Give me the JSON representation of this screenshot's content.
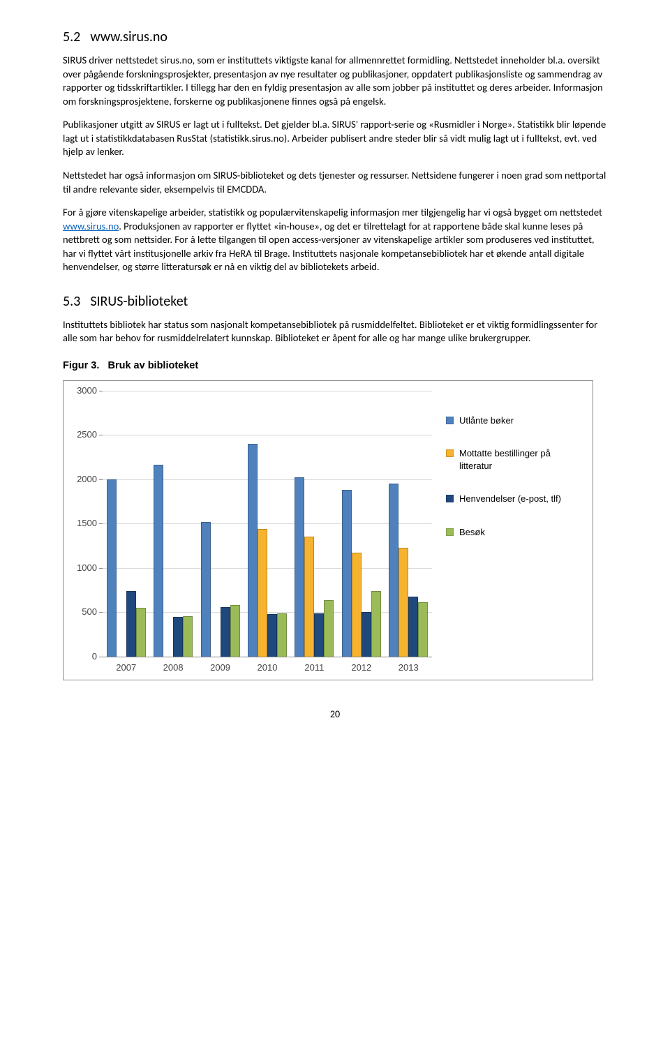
{
  "section_5_2": {
    "number": "5.2",
    "title": "www.sirus.no",
    "p1": "SIRUS driver nettstedet sirus.no, som er instituttets viktigste kanal for allmennrettet formidling. Nettstedet inneholder bl.a. oversikt over pågående forskningsprosjekter, presentasjon av nye resultater og publikasjoner, oppdatert publikasjonsliste og sammendrag av rapporter og tidsskriftartikler. I tillegg har den en fyldig presentasjon av alle som jobber på instituttet og deres arbeider. Informasjon om forskningsprosjektene, forskerne og publikasjonene finnes også på engelsk.",
    "p2": "Publikasjoner utgitt av SIRUS er lagt ut i fulltekst. Det gjelder bl.a. SIRUS' rapport-serie og «Rusmidler i Norge». Statistikk blir løpende lagt ut i statistikkdatabasen RusStat (statistikk.sirus.no). Arbeider publisert andre steder blir så vidt mulig lagt ut i fulltekst, evt. ved hjelp av lenker.",
    "p3": "Nettstedet har også informasjon om SIRUS-biblioteket og dets tjenester og ressurser. Nettsidene fungerer i noen grad som nettportal til andre relevante sider, eksempelvis til EMCDDA.",
    "p4_pre": "For å gjøre vitenskapelige arbeider, statistikk og populærvitenskapelig informasjon mer tilgjengelig har vi også bygget om nettstedet ",
    "p4_link": "www.sirus.no",
    "p4_post": ". Produksjonen av rapporter er flyttet «in-house», og det er tilrettelagt for at rapportene både skal kunne leses på nettbrett og som nettsider. For å lette tilgangen til open access-versjoner av vitenskapelige artikler som produseres ved instituttet, har vi flyttet vårt institusjonelle arkiv fra HeRA til Brage. Instituttets nasjonale kompetansebibliotek har et økende antall digitale henvendelser, og større litteratursøk er nå en viktig del av bibliotekets arbeid."
  },
  "section_5_3": {
    "number": "5.3",
    "title": "SIRUS-biblioteket",
    "p1": "Instituttets bibliotek har status som nasjonalt kompetansebibliotek på rusmiddelfeltet. Biblioteket er et viktig formidlingssenter for alle som har behov for rusmiddelrelatert kunnskap. Biblioteket er åpent for alle og har mange ulike brukergrupper."
  },
  "figure": {
    "title_prefix": "Figur 3.",
    "title_text": "Bruk av biblioteket"
  },
  "chart": {
    "type": "bar",
    "ylim": [
      0,
      3000
    ],
    "ytick_step": 500,
    "categories": [
      "2007",
      "2008",
      "2009",
      "2010",
      "2011",
      "2012",
      "2013"
    ],
    "series": [
      {
        "label": "Utlånte bøker",
        "color": "#4f81bd",
        "values": [
          2000,
          2160,
          1520,
          2400,
          2020,
          1880,
          1950
        ]
      },
      {
        "label": "Mottatte bestillinger på litteratur",
        "color": "#f6b330",
        "values": [
          0,
          0,
          0,
          1440,
          1350,
          1170,
          1230
        ]
      },
      {
        "label": "Henvendelser (e-post, tlf)",
        "color": "#1f497d",
        "values": [
          740,
          450,
          560,
          480,
          490,
          500,
          680
        ]
      },
      {
        "label": "Besøk",
        "color": "#9bbb59",
        "values": [
          550,
          460,
          580,
          490,
          640,
          740,
          610
        ]
      }
    ],
    "background_color": "#ffffff",
    "grid_color": "#d9d9d9",
    "tick_fontsize": 13,
    "legend_fontsize": 13
  },
  "page_number": "20"
}
